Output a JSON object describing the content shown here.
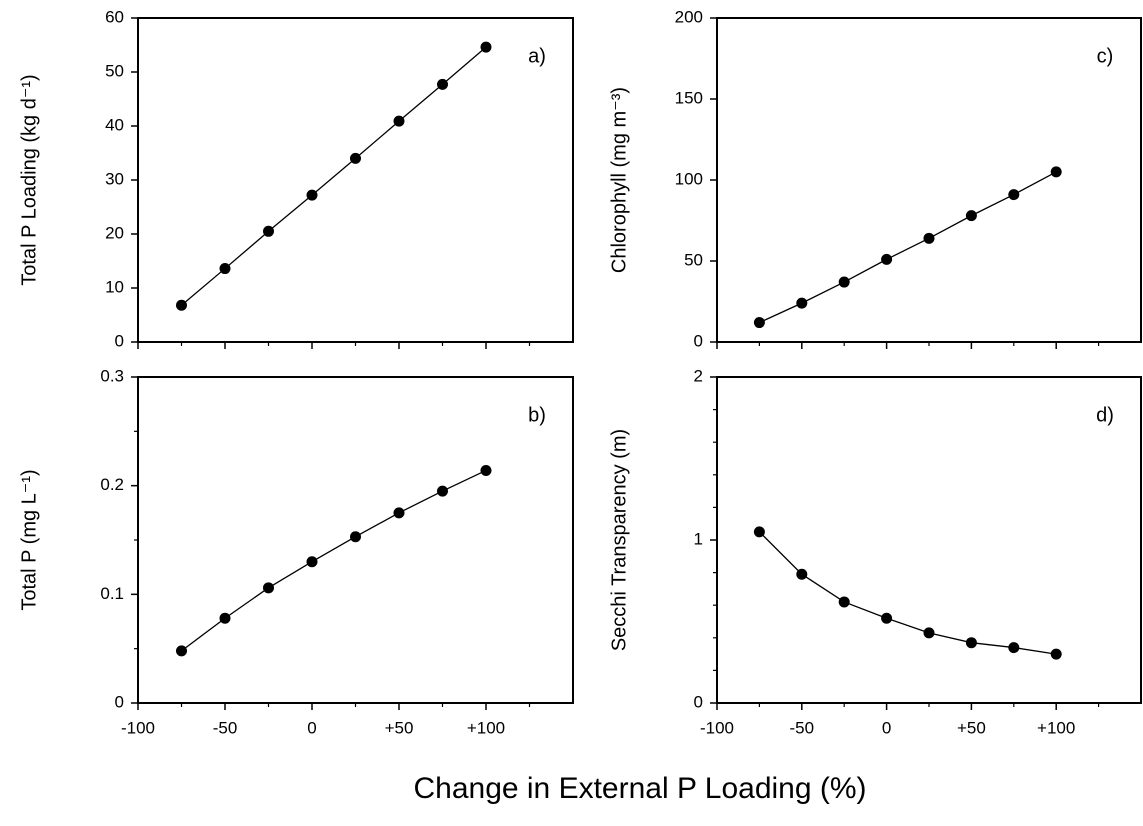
{
  "xlabel": "Change in External P Loading (%)",
  "chart_data": [
    {
      "type": "line",
      "panel": "a)",
      "ylabel": "Total P Loading (kg d⁻¹)",
      "x": [
        -75,
        -50,
        -25,
        0,
        25,
        50,
        75,
        100
      ],
      "values": [
        6.8,
        13.6,
        20.5,
        27.2,
        34.0,
        40.9,
        47.7,
        54.6
      ],
      "color": "#000000",
      "xlim": [
        -100,
        150
      ],
      "ylim": [
        0,
        60
      ],
      "xticks": [
        -100,
        -50,
        0,
        50,
        100
      ],
      "xminorticks": [
        -75,
        -25,
        25,
        75,
        125
      ],
      "xticklabels": false,
      "yticks": [
        0,
        10,
        20,
        30,
        40,
        50,
        60
      ],
      "yminorticks": []
    },
    {
      "type": "line",
      "panel": "b)",
      "ylabel": "Total P (mg L⁻¹)",
      "x": [
        -75,
        -50,
        -25,
        0,
        25,
        50,
        75,
        100
      ],
      "values": [
        0.048,
        0.078,
        0.106,
        0.13,
        0.153,
        0.175,
        0.195,
        0.214
      ],
      "color": "#000000",
      "xlim": [
        -100,
        150
      ],
      "ylim": [
        0,
        0.3
      ],
      "xticks": [
        -100,
        {
          "value": -50,
          "label": "-50"
        },
        0,
        {
          "value": 50,
          "label": "+50"
        },
        {
          "value": 100,
          "label": "+100"
        }
      ],
      "xminorticks": [
        -75,
        -25,
        25,
        75,
        125
      ],
      "xticklabels": true,
      "yticks": [
        0,
        0.1,
        0.2,
        0.3
      ],
      "yminorticks": [
        0.05,
        0.15,
        0.25
      ]
    },
    {
      "type": "line",
      "panel": "c)",
      "ylabel": "Chlorophyll (mg m⁻³)",
      "x": [
        -75,
        -50,
        -25,
        0,
        25,
        50,
        75,
        100
      ],
      "values": [
        12,
        24,
        37,
        51,
        64,
        78,
        91,
        105
      ],
      "color": "#000000",
      "xlim": [
        -100,
        150
      ],
      "ylim": [
        0,
        200
      ],
      "xticks": [
        -100,
        -50,
        0,
        50,
        100
      ],
      "xminorticks": [
        -75,
        -25,
        25,
        75,
        125
      ],
      "xticklabels": false,
      "yticks": [
        0,
        50,
        100,
        150,
        200
      ],
      "yminorticks": []
    },
    {
      "type": "line",
      "panel": "d)",
      "ylabel": "Secchi Transparency (m)",
      "x": [
        -75,
        -50,
        -25,
        0,
        25,
        50,
        75,
        100
      ],
      "values": [
        1.05,
        0.79,
        0.62,
        0.52,
        0.43,
        0.37,
        0.34,
        0.3
      ],
      "color": "#000000",
      "xlim": [
        -100,
        150
      ],
      "ylim": [
        0,
        2
      ],
      "xticks": [
        -100,
        {
          "value": -50,
          "label": "-50"
        },
        0,
        {
          "value": 50,
          "label": "+50"
        },
        {
          "value": 100,
          "label": "+100"
        }
      ],
      "xminorticks": [
        -75,
        -25,
        25,
        75,
        125
      ],
      "xticklabels": true,
      "yticks": [
        0,
        1,
        2
      ],
      "yminorticks": [
        0.2,
        0.4,
        0.6,
        0.8,
        1.2,
        1.4,
        1.6,
        1.8
      ]
    }
  ]
}
